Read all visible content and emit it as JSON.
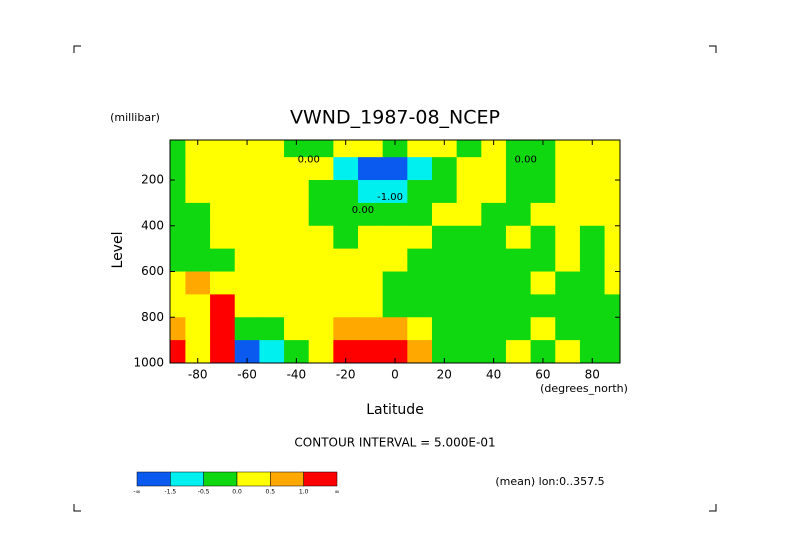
{
  "chart_data": {
    "type": "contour",
    "title": "VWND_1987-08_NCEP",
    "y_unit_label": "(millibar)",
    "y_label": "Level",
    "x_label": "Latitude",
    "x_unit_label": "(degrees_north)",
    "subtitle": "CONTOUR INTERVAL = 5.000E-01",
    "note": "(mean) lon:0..357.5",
    "xlim": [
      -91.25,
      91.25
    ],
    "ylim": [
      1000,
      25
    ],
    "xticks": [
      -80,
      -60,
      -40,
      -20,
      0,
      20,
      40,
      60,
      80
    ],
    "yticks": [
      200,
      400,
      600,
      800,
      1000
    ],
    "x": [
      -90,
      -80,
      -70,
      -60,
      -50,
      -40,
      -30,
      -20,
      -10,
      0,
      10,
      20,
      30,
      40,
      50,
      60,
      70,
      80,
      90
    ],
    "y": [
      50,
      150,
      250,
      350,
      450,
      550,
      650,
      750,
      850,
      950
    ],
    "z": [
      [
        -0.2,
        0.2,
        0.2,
        0.2,
        0.2,
        -0.2,
        -0.2,
        0.2,
        0.2,
        -0.3,
        0.2,
        0.2,
        -0.2,
        0.2,
        -0.2,
        -0.2,
        0.2,
        0.2,
        0.2
      ],
      [
        -0.2,
        0.2,
        0.2,
        0.2,
        0.2,
        0.2,
        0.2,
        -0.8,
        -2,
        -2,
        -1,
        -0.2,
        0.2,
        0.2,
        -0.2,
        -0.2,
        0.2,
        0.2,
        0.2
      ],
      [
        -0.2,
        0.2,
        0.2,
        0.2,
        0.2,
        0.2,
        -0.2,
        -0.2,
        -1,
        -1.2,
        -0.2,
        -0.2,
        0.2,
        0.2,
        -0.2,
        -0.2,
        0.2,
        0.2,
        0.2
      ],
      [
        -0.2,
        -0.2,
        0.2,
        0.2,
        0.2,
        0.2,
        -0.2,
        -0.2,
        -0.2,
        -0.2,
        -0.2,
        0.2,
        0.2,
        -0.2,
        -0.2,
        0.2,
        0.2,
        0.2,
        0.2
      ],
      [
        -0.2,
        -0.2,
        0.2,
        0.2,
        0.2,
        0.2,
        0.2,
        -0.2,
        0.2,
        0.2,
        0.2,
        -0.2,
        -0.2,
        -0.2,
        0.2,
        -0.2,
        0.2,
        -0.2,
        0.2
      ],
      [
        -0.2,
        -0.2,
        -0.2,
        0.2,
        0.2,
        0.2,
        0.2,
        0.2,
        0.2,
        0.2,
        -0.2,
        -0.2,
        -0.2,
        -0.2,
        -0.2,
        -0.2,
        0.2,
        -0.2,
        0.2
      ],
      [
        0.2,
        0.7,
        0.2,
        0.2,
        0.2,
        0.2,
        0.2,
        0.2,
        0.2,
        -0.2,
        -0.2,
        -0.2,
        -0.2,
        -0.2,
        -0.2,
        0.2,
        -0.2,
        -0.2,
        0.2
      ],
      [
        0.2,
        0.2,
        1.2,
        0.2,
        0.2,
        0.2,
        0.2,
        0.2,
        0.2,
        -0.2,
        -0.2,
        -0.2,
        -0.2,
        -0.2,
        -0.2,
        -0.2,
        -0.2,
        -0.2,
        -0.2
      ],
      [
        0.7,
        0.2,
        1.5,
        -0.2,
        -0.2,
        0.2,
        0.2,
        0.7,
        0.8,
        0.9,
        0.2,
        -0.2,
        -0.2,
        -0.2,
        -0.2,
        0.2,
        -0.2,
        -0.2,
        -0.2
      ],
      [
        1.2,
        0.2,
        1.2,
        -1.6,
        -1,
        -0.2,
        0.2,
        1.3,
        1.8,
        1.6,
        0.7,
        -0.2,
        -0.2,
        -0.2,
        0.2,
        -0.2,
        0.2,
        -0.2,
        -0.2
      ]
    ],
    "colors": [
      "#0a5af0",
      "#00f0f0",
      "#10d810",
      "#ffff00",
      "#ffa800",
      "#ff0000"
    ],
    "colorbar_ticks": [
      {
        "label": "-∞"
      },
      -1.5,
      -0.5,
      {
        "value": 0,
        "label": "0.0"
      },
      0.5,
      {
        "value": 1,
        "label": "1.0"
      },
      {
        "label": "∞"
      }
    ],
    "annotations": [
      {
        "text": "0.00",
        "x": -35,
        "y": 110
      },
      {
        "text": "-1.00",
        "x": -2,
        "y": 275
      },
      {
        "text": "0.00",
        "x": 53,
        "y": 110
      },
      {
        "text": "0.00",
        "x": -13,
        "y": 330
      }
    ]
  }
}
